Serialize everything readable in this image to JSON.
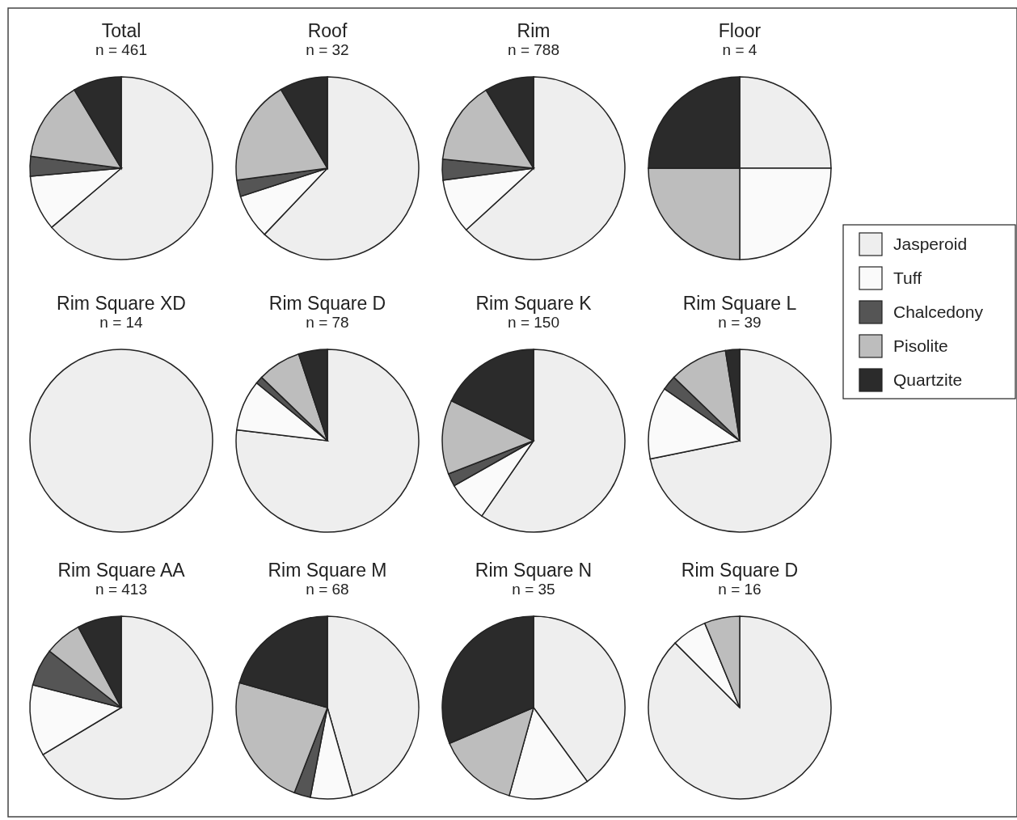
{
  "chart_data": [
    {
      "type": "pie",
      "title": "Total",
      "subtitle": "n = 461",
      "categories": [
        "Jasperoid",
        "Tuff",
        "Chalcedony",
        "Pisolite",
        "Quartzite"
      ],
      "values": [
        63.8,
        9.8,
        3.5,
        14.3,
        8.6
      ],
      "colors": [
        "#eeeeee",
        "#fafafa",
        "#555555",
        "#bdbdbd",
        "#2b2b2b"
      ],
      "legend": "right"
    },
    {
      "type": "pie",
      "title": "Roof",
      "subtitle": "n = 32",
      "categories": [
        null,
        null,
        null,
        null,
        null
      ],
      "values": [
        62.1,
        7.9,
        2.9,
        18.6,
        8.5
      ],
      "colors": [
        "#eeeeee",
        "#fafafa",
        "#555555",
        "#bdbdbd",
        "#2b2b2b"
      ]
    },
    {
      "type": "pie",
      "title": "Rim",
      "subtitle": "n = 788",
      "categories": [
        null,
        null,
        null,
        null,
        null
      ],
      "values": [
        63.2,
        9.7,
        3.7,
        14.7,
        8.7
      ],
      "colors": [
        "#eeeeee",
        "#fafafa",
        "#555555",
        "#bdbdbd",
        "#2b2b2b"
      ]
    },
    {
      "type": "pie",
      "title": "Floor",
      "subtitle": "n = 4",
      "categories": [
        null,
        null,
        null,
        null
      ],
      "values": [
        25,
        25,
        25,
        25
      ],
      "colors": [
        "#eeeeee",
        "#fafafa",
        "#bdbdbd",
        "#2b2b2b"
      ]
    },
    {
      "type": "pie",
      "title": "Rim Square XD",
      "subtitle": "n = 14",
      "categories": [
        null
      ],
      "values": [
        100
      ],
      "colors": [
        "#eeeeee"
      ]
    },
    {
      "type": "pie",
      "title": "Rim Square D",
      "subtitle": "n = 78",
      "categories": [
        null,
        null,
        null,
        null,
        null
      ],
      "values": [
        76.9,
        9.0,
        1.3,
        7.7,
        5.1
      ],
      "colors": [
        "#eeeeee",
        "#fafafa",
        "#555555",
        "#bdbdbd",
        "#2b2b2b"
      ]
    },
    {
      "type": "pie",
      "title": "Rim Square K",
      "subtitle": "n = 150",
      "categories": [
        null,
        null,
        null,
        null,
        null
      ],
      "values": [
        59.6,
        7.2,
        2.3,
        13.1,
        17.8
      ],
      "colors": [
        "#eeeeee",
        "#fafafa",
        "#555555",
        "#bdbdbd",
        "#2b2b2b"
      ]
    },
    {
      "type": "pie",
      "title": "Rim Square L",
      "subtitle": "n = 39",
      "categories": [
        null,
        null,
        null,
        null,
        null
      ],
      "values": [
        71.8,
        12.8,
        2.6,
        10.3,
        2.5
      ],
      "colors": [
        "#eeeeee",
        "#fafafa",
        "#555555",
        "#bdbdbd",
        "#2b2b2b"
      ]
    },
    {
      "type": "pie",
      "title": "Rim Square AA",
      "subtitle": "n = 413",
      "categories": [
        null,
        null,
        null,
        null,
        null
      ],
      "values": [
        66.4,
        12.6,
        6.6,
        6.6,
        7.8
      ],
      "colors": [
        "#eeeeee",
        "#fafafa",
        "#555555",
        "#bdbdbd",
        "#2b2b2b"
      ]
    },
    {
      "type": "pie",
      "title": "Rim Square M",
      "subtitle": "n = 68",
      "categories": [
        null,
        null,
        null,
        null,
        null
      ],
      "values": [
        45.6,
        7.4,
        2.9,
        23.5,
        20.6
      ],
      "colors": [
        "#eeeeee",
        "#fafafa",
        "#555555",
        "#bdbdbd",
        "#2b2b2b"
      ]
    },
    {
      "type": "pie",
      "title": "Rim Square N",
      "subtitle": "n = 35",
      "categories": [
        null,
        null,
        null,
        null
      ],
      "values": [
        40,
        14.3,
        14.3,
        31.4
      ],
      "colors": [
        "#eeeeee",
        "#fafafa",
        "#bdbdbd",
        "#2b2b2b"
      ]
    },
    {
      "type": "pie",
      "title": "Rim Square D",
      "subtitle": "n = 16",
      "categories": [
        null,
        null,
        null
      ],
      "values": [
        87.5,
        6.25,
        6.25
      ],
      "colors": [
        "#eeeeee",
        "#fafafa",
        "#bdbdbd"
      ]
    }
  ]
}
